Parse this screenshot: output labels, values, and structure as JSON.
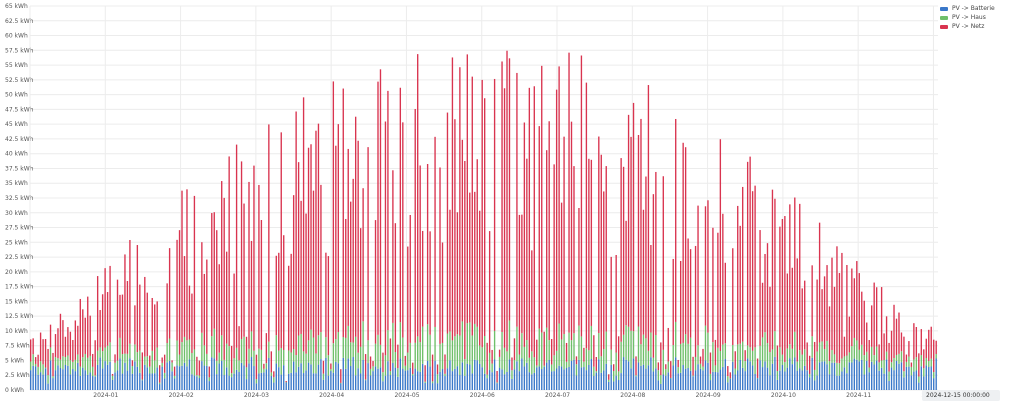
{
  "chart_data": {
    "type": "bar",
    "stacked": true,
    "y_tick_labels": [
      "0 kWh",
      "2.5 kWh",
      "5 kWh",
      "7.5 kWh",
      "10 kWh",
      "12.5 kWh",
      "15 kWh",
      "17.5 kWh",
      "20 kWh",
      "22.5 kWh",
      "25 kWh",
      "27.5 kWh",
      "30 kWh",
      "32.5 kWh",
      "35 kWh",
      "37.5 kWh",
      "40 kWh",
      "42.5 kWh",
      "45 kWh",
      "47.5 kWh",
      "50 kWh",
      "52.5 kWh",
      "55 kWh",
      "57.5 kWh",
      "60 kWh",
      "62.5 kWh",
      "65 kWh"
    ],
    "ylim": [
      0,
      65
    ],
    "x_tick_labels": [
      "2024-01",
      "2024-02",
      "2024-03",
      "2024-04",
      "2024-05",
      "2024-06",
      "2024-07",
      "2024-08",
      "2024-09",
      "2024-10",
      "2024-11",
      "2024-12"
    ],
    "grid": true,
    "legend_position": "top-right",
    "colors": {
      "series_a": "#3a78c9",
      "series_b": "#6fbf6a",
      "series_c": "#d9344f",
      "grid": "#ececec"
    },
    "series": [
      {
        "name": "PV -> Batterie",
        "color": "#3a78c9",
        "mean": 4.0
      },
      {
        "name": "PV -> Haus",
        "color": "#6fbf6a",
        "mean": 3.5
      },
      {
        "name": "PV -> Netz",
        "color": "#d9344f",
        "mean": 18.0
      }
    ],
    "seasonal_peak_total_kwh": 55,
    "days": 366,
    "tooltip_label": "2024-12-15 00:00:00"
  }
}
